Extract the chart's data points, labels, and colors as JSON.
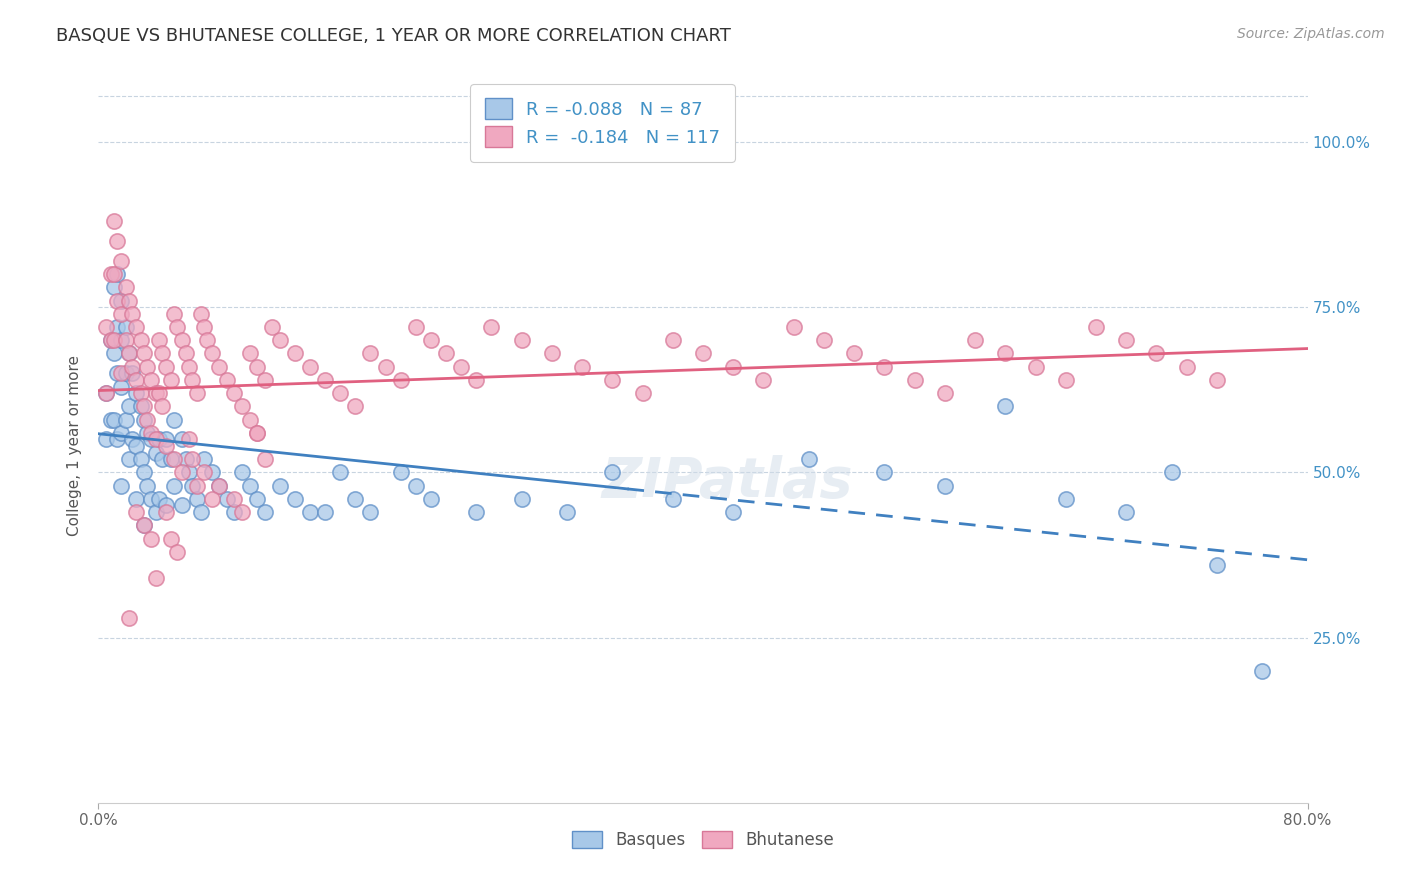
{
  "title": "BASQUE VS BHUTANESE COLLEGE, 1 YEAR OR MORE CORRELATION CHART",
  "source_text": "Source: ZipAtlas.com",
  "ylabel": "College, 1 year or more",
  "x_tick_labels": [
    "0.0%",
    "80.0%"
  ],
  "y_tick_labels": [
    "25.0%",
    "50.0%",
    "75.0%",
    "100.0%"
  ],
  "x_min": 0.0,
  "x_max": 0.8,
  "y_min": 0.0,
  "y_max": 1.08,
  "basque_R": -0.088,
  "basque_N": 87,
  "bhutanese_R": -0.184,
  "bhutanese_N": 117,
  "basque_color": "#a8c8e8",
  "bhutanese_color": "#f0a8c0",
  "basque_line_color": "#4080c0",
  "bhutanese_line_color": "#e06080",
  "basque_edge_color": "#6090c8",
  "bhutanese_edge_color": "#d87898",
  "background_color": "#ffffff",
  "grid_color": "#c8d4e0",
  "basque_x": [
    0.005,
    0.005,
    0.008,
    0.008,
    0.01,
    0.01,
    0.01,
    0.012,
    0.012,
    0.012,
    0.012,
    0.015,
    0.015,
    0.015,
    0.015,
    0.015,
    0.018,
    0.018,
    0.018,
    0.02,
    0.02,
    0.02,
    0.022,
    0.022,
    0.025,
    0.025,
    0.025,
    0.028,
    0.028,
    0.03,
    0.03,
    0.03,
    0.032,
    0.032,
    0.035,
    0.035,
    0.038,
    0.038,
    0.04,
    0.04,
    0.042,
    0.045,
    0.045,
    0.048,
    0.05,
    0.05,
    0.055,
    0.055,
    0.058,
    0.06,
    0.062,
    0.065,
    0.068,
    0.07,
    0.075,
    0.08,
    0.085,
    0.09,
    0.095,
    0.1,
    0.105,
    0.11,
    0.12,
    0.13,
    0.14,
    0.15,
    0.16,
    0.17,
    0.18,
    0.2,
    0.21,
    0.22,
    0.25,
    0.28,
    0.31,
    0.34,
    0.38,
    0.42,
    0.47,
    0.52,
    0.56,
    0.6,
    0.64,
    0.68,
    0.71,
    0.74,
    0.77
  ],
  "basque_y": [
    0.62,
    0.55,
    0.7,
    0.58,
    0.78,
    0.68,
    0.58,
    0.8,
    0.72,
    0.65,
    0.55,
    0.76,
    0.7,
    0.63,
    0.56,
    0.48,
    0.72,
    0.65,
    0.58,
    0.68,
    0.6,
    0.52,
    0.65,
    0.55,
    0.62,
    0.54,
    0.46,
    0.6,
    0.52,
    0.58,
    0.5,
    0.42,
    0.56,
    0.48,
    0.55,
    0.46,
    0.53,
    0.44,
    0.55,
    0.46,
    0.52,
    0.55,
    0.45,
    0.52,
    0.58,
    0.48,
    0.55,
    0.45,
    0.52,
    0.5,
    0.48,
    0.46,
    0.44,
    0.52,
    0.5,
    0.48,
    0.46,
    0.44,
    0.5,
    0.48,
    0.46,
    0.44,
    0.48,
    0.46,
    0.44,
    0.44,
    0.5,
    0.46,
    0.44,
    0.5,
    0.48,
    0.46,
    0.44,
    0.46,
    0.44,
    0.5,
    0.46,
    0.44,
    0.52,
    0.5,
    0.48,
    0.6,
    0.46,
    0.44,
    0.5,
    0.36,
    0.2
  ],
  "bhutanese_x": [
    0.005,
    0.005,
    0.008,
    0.008,
    0.01,
    0.01,
    0.01,
    0.012,
    0.012,
    0.015,
    0.015,
    0.015,
    0.018,
    0.018,
    0.02,
    0.02,
    0.022,
    0.022,
    0.025,
    0.025,
    0.028,
    0.028,
    0.03,
    0.03,
    0.032,
    0.032,
    0.035,
    0.035,
    0.038,
    0.038,
    0.04,
    0.04,
    0.042,
    0.042,
    0.045,
    0.048,
    0.05,
    0.052,
    0.055,
    0.058,
    0.06,
    0.062,
    0.065,
    0.068,
    0.07,
    0.072,
    0.075,
    0.08,
    0.085,
    0.09,
    0.095,
    0.1,
    0.105,
    0.11,
    0.115,
    0.12,
    0.13,
    0.14,
    0.15,
    0.16,
    0.17,
    0.18,
    0.19,
    0.2,
    0.21,
    0.22,
    0.23,
    0.24,
    0.25,
    0.26,
    0.28,
    0.3,
    0.32,
    0.34,
    0.36,
    0.38,
    0.4,
    0.42,
    0.44,
    0.46,
    0.48,
    0.5,
    0.52,
    0.54,
    0.56,
    0.58,
    0.6,
    0.62,
    0.64,
    0.66,
    0.68,
    0.7,
    0.72,
    0.74,
    0.07,
    0.08,
    0.09,
    0.095,
    0.1,
    0.105,
    0.045,
    0.05,
    0.055,
    0.065,
    0.075,
    0.02,
    0.025,
    0.03,
    0.035,
    0.06,
    0.062,
    0.045,
    0.048,
    0.052,
    0.038,
    0.105,
    0.11
  ],
  "bhutanese_y": [
    0.72,
    0.62,
    0.8,
    0.7,
    0.88,
    0.8,
    0.7,
    0.85,
    0.76,
    0.82,
    0.74,
    0.65,
    0.78,
    0.7,
    0.76,
    0.68,
    0.74,
    0.66,
    0.72,
    0.64,
    0.7,
    0.62,
    0.68,
    0.6,
    0.66,
    0.58,
    0.64,
    0.56,
    0.62,
    0.55,
    0.7,
    0.62,
    0.68,
    0.6,
    0.66,
    0.64,
    0.74,
    0.72,
    0.7,
    0.68,
    0.66,
    0.64,
    0.62,
    0.74,
    0.72,
    0.7,
    0.68,
    0.66,
    0.64,
    0.62,
    0.6,
    0.68,
    0.66,
    0.64,
    0.72,
    0.7,
    0.68,
    0.66,
    0.64,
    0.62,
    0.6,
    0.68,
    0.66,
    0.64,
    0.72,
    0.7,
    0.68,
    0.66,
    0.64,
    0.72,
    0.7,
    0.68,
    0.66,
    0.64,
    0.62,
    0.7,
    0.68,
    0.66,
    0.64,
    0.72,
    0.7,
    0.68,
    0.66,
    0.64,
    0.62,
    0.7,
    0.68,
    0.66,
    0.64,
    0.72,
    0.7,
    0.68,
    0.66,
    0.64,
    0.5,
    0.48,
    0.46,
    0.44,
    0.58,
    0.56,
    0.54,
    0.52,
    0.5,
    0.48,
    0.46,
    0.28,
    0.44,
    0.42,
    0.4,
    0.55,
    0.52,
    0.44,
    0.4,
    0.38,
    0.34,
    0.56,
    0.52
  ]
}
